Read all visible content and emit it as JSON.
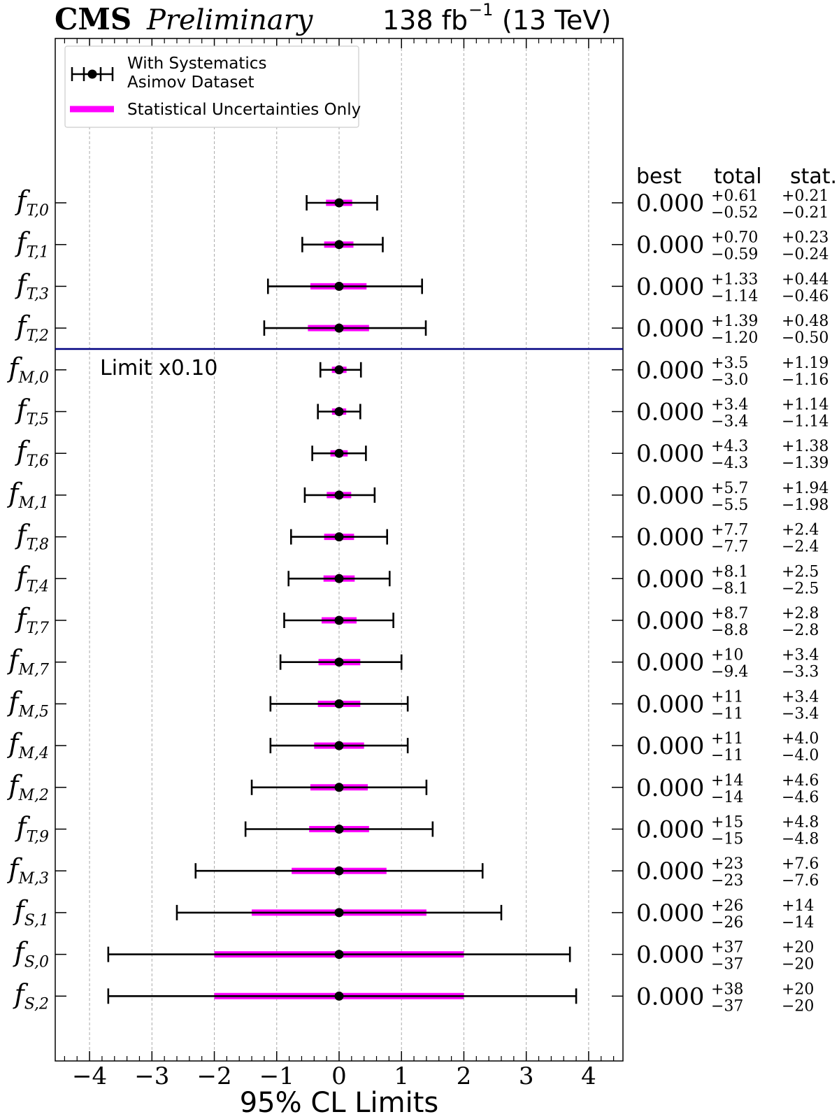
{
  "header": {
    "experiment": "CMS",
    "status": "Preliminary",
    "luminosity": "138 fb",
    "lumi_exponent": "−1",
    "energy": "(13 TeV)"
  },
  "legend": {
    "systematics_line1": "With Systematics",
    "systematics_line2": "Asimov Dataset",
    "stat_only": "Statistical Uncertainties Only"
  },
  "table_headers": {
    "best": "best",
    "total": "total",
    "stat": "stat."
  },
  "scale_note": "Limit x0.10",
  "colors": {
    "errorbar": "#000000",
    "stat_band": "#ff00ff",
    "separator": "#000080",
    "grid": "#aaaaaa"
  },
  "chart_data": {
    "type": "errorbar",
    "xlabel": "95% CL Limits",
    "xlim": [
      -4.55,
      4.55
    ],
    "xticks": [
      -4,
      -3,
      -2,
      -1,
      0,
      1,
      2,
      3,
      4
    ],
    "grid": "vertical dashed",
    "legend_position": "top-left",
    "scale_factor_below_separator": 0.1,
    "rows": [
      {
        "sym": "f",
        "sub": "T,0",
        "best": "0.000",
        "tot_up": "+0.61",
        "tot_dn": "−0.52",
        "st_up": "+0.21",
        "st_dn": "−0.21",
        "x": 0,
        "lo": -0.52,
        "hi": 0.61,
        "slo": -0.21,
        "shi": 0.21,
        "scaled": false
      },
      {
        "sym": "f",
        "sub": "T,1",
        "best": "0.000",
        "tot_up": "+0.70",
        "tot_dn": "−0.59",
        "st_up": "+0.23",
        "st_dn": "−0.24",
        "x": 0,
        "lo": -0.59,
        "hi": 0.7,
        "slo": -0.24,
        "shi": 0.23,
        "scaled": false
      },
      {
        "sym": "f",
        "sub": "T,3",
        "best": "0.000",
        "tot_up": "+1.33",
        "tot_dn": "−1.14",
        "st_up": "+0.44",
        "st_dn": "−0.46",
        "x": 0,
        "lo": -1.14,
        "hi": 1.33,
        "slo": -0.46,
        "shi": 0.44,
        "scaled": false
      },
      {
        "sym": "f",
        "sub": "T,2",
        "best": "0.000",
        "tot_up": "+1.39",
        "tot_dn": "−1.20",
        "st_up": "+0.48",
        "st_dn": "−0.50",
        "x": 0,
        "lo": -1.2,
        "hi": 1.39,
        "slo": -0.5,
        "shi": 0.48,
        "scaled": false
      },
      {
        "sym": "f",
        "sub": "M,0",
        "best": "0.000",
        "tot_up": "+3.5",
        "tot_dn": "−3.0",
        "st_up": "+1.19",
        "st_dn": "−1.16",
        "x": 0,
        "lo": -3.0,
        "hi": 3.5,
        "slo": -1.16,
        "shi": 1.19,
        "scaled": true
      },
      {
        "sym": "f",
        "sub": "T,5",
        "best": "0.000",
        "tot_up": "+3.4",
        "tot_dn": "−3.4",
        "st_up": "+1.14",
        "st_dn": "−1.14",
        "x": 0,
        "lo": -3.4,
        "hi": 3.4,
        "slo": -1.14,
        "shi": 1.14,
        "scaled": true
      },
      {
        "sym": "f",
        "sub": "T,6",
        "best": "0.000",
        "tot_up": "+4.3",
        "tot_dn": "−4.3",
        "st_up": "+1.38",
        "st_dn": "−1.39",
        "x": 0,
        "lo": -4.3,
        "hi": 4.3,
        "slo": -1.39,
        "shi": 1.38,
        "scaled": true
      },
      {
        "sym": "f",
        "sub": "M,1",
        "best": "0.000",
        "tot_up": "+5.7",
        "tot_dn": "−5.5",
        "st_up": "+1.94",
        "st_dn": "−1.98",
        "x": 0,
        "lo": -5.5,
        "hi": 5.7,
        "slo": -1.98,
        "shi": 1.94,
        "scaled": true
      },
      {
        "sym": "f",
        "sub": "T,8",
        "best": "0.000",
        "tot_up": "+7.7",
        "tot_dn": "−7.7",
        "st_up": "+2.4",
        "st_dn": "−2.4",
        "x": 0,
        "lo": -7.7,
        "hi": 7.7,
        "slo": -2.4,
        "shi": 2.4,
        "scaled": true
      },
      {
        "sym": "f",
        "sub": "T,4",
        "best": "0.000",
        "tot_up": "+8.1",
        "tot_dn": "−8.1",
        "st_up": "+2.5",
        "st_dn": "−2.5",
        "x": 0,
        "lo": -8.1,
        "hi": 8.1,
        "slo": -2.5,
        "shi": 2.5,
        "scaled": true
      },
      {
        "sym": "f",
        "sub": "T,7",
        "best": "0.000",
        "tot_up": "+8.7",
        "tot_dn": "−8.8",
        "st_up": "+2.8",
        "st_dn": "−2.8",
        "x": 0,
        "lo": -8.8,
        "hi": 8.7,
        "slo": -2.8,
        "shi": 2.8,
        "scaled": true
      },
      {
        "sym": "f",
        "sub": "M,7",
        "best": "0.000",
        "tot_up": "+10",
        "tot_dn": "−9.4",
        "st_up": "+3.4",
        "st_dn": "−3.3",
        "x": 0,
        "lo": -9.4,
        "hi": 10,
        "slo": -3.3,
        "shi": 3.4,
        "scaled": true
      },
      {
        "sym": "f",
        "sub": "M,5",
        "best": "0.000",
        "tot_up": "+11",
        "tot_dn": "−11",
        "st_up": "+3.4",
        "st_dn": "−3.4",
        "x": 0,
        "lo": -11,
        "hi": 11,
        "slo": -3.4,
        "shi": 3.4,
        "scaled": true
      },
      {
        "sym": "f",
        "sub": "M,4",
        "best": "0.000",
        "tot_up": "+11",
        "tot_dn": "−11",
        "st_up": "+4.0",
        "st_dn": "−4.0",
        "x": 0,
        "lo": -11,
        "hi": 11,
        "slo": -4.0,
        "shi": 4.0,
        "scaled": true
      },
      {
        "sym": "f",
        "sub": "M,2",
        "best": "0.000",
        "tot_up": "+14",
        "tot_dn": "−14",
        "st_up": "+4.6",
        "st_dn": "−4.6",
        "x": 0,
        "lo": -14,
        "hi": 14,
        "slo": -4.6,
        "shi": 4.6,
        "scaled": true
      },
      {
        "sym": "f",
        "sub": "T,9",
        "best": "0.000",
        "tot_up": "+15",
        "tot_dn": "−15",
        "st_up": "+4.8",
        "st_dn": "−4.8",
        "x": 0,
        "lo": -15,
        "hi": 15,
        "slo": -4.8,
        "shi": 4.8,
        "scaled": true
      },
      {
        "sym": "f",
        "sub": "M,3",
        "best": "0.000",
        "tot_up": "+23",
        "tot_dn": "−23",
        "st_up": "+7.6",
        "st_dn": "−7.6",
        "x": 0,
        "lo": -23,
        "hi": 23,
        "slo": -7.6,
        "shi": 7.6,
        "scaled": true
      },
      {
        "sym": "f",
        "sub": "S,1",
        "best": "0.000",
        "tot_up": "+26",
        "tot_dn": "−26",
        "st_up": "+14",
        "st_dn": "−14",
        "x": 0,
        "lo": -26,
        "hi": 26,
        "slo": -14,
        "shi": 14,
        "scaled": true
      },
      {
        "sym": "f",
        "sub": "S,0",
        "best": "0.000",
        "tot_up": "+37",
        "tot_dn": "−37",
        "st_up": "+20",
        "st_dn": "−20",
        "x": 0,
        "lo": -37,
        "hi": 37,
        "slo": -20,
        "shi": 20,
        "scaled": true
      },
      {
        "sym": "f",
        "sub": "S,2",
        "best": "0.000",
        "tot_up": "+38",
        "tot_dn": "−37",
        "st_up": "+20",
        "st_dn": "−20",
        "x": 0,
        "lo": -37,
        "hi": 38,
        "slo": -20,
        "shi": 20,
        "scaled": true
      }
    ]
  }
}
